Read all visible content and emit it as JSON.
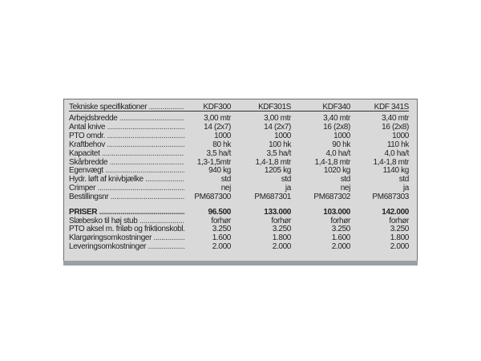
{
  "header": {
    "label": "Tekniske specifikationer",
    "models": [
      "KDF300",
      "KDF301S",
      "KDF340",
      "KDF 341S"
    ]
  },
  "specs": [
    {
      "label": "Arbejdsbredde",
      "values": [
        "3,00 mtr",
        "3,00 mtr",
        "3,40 mtr",
        "3,40 mtr"
      ]
    },
    {
      "label": "Antal knive",
      "values": [
        "14 (2x7)",
        "14 (2x7)",
        "16 (2x8)",
        "16 (2x8)"
      ]
    },
    {
      "label": "PTO omdr.",
      "values": [
        "1000",
        "1000",
        "1000",
        "1000"
      ]
    },
    {
      "label": "Kraftbehov",
      "values": [
        "80 hk",
        "100 hk",
        "90 hk",
        "110  hk"
      ]
    },
    {
      "label": "Kapacitet",
      "values": [
        "3,5 ha/t",
        "3,5 ha/t",
        "4,0 ha/t",
        "4,0 ha/t"
      ]
    },
    {
      "label": "Skårbredde",
      "values": [
        "1,3-1,5mtr",
        "1,4-1,8 mtr",
        "1,4-1,8 mtr",
        "1,4-1,8 mtr"
      ]
    },
    {
      "label": "Egenvægt",
      "values": [
        "940 kg",
        "1205 kg",
        "1020 kg",
        "1140 kg"
      ]
    },
    {
      "label": "Hydr. løft af knivbjælke",
      "values": [
        "std",
        "std",
        "std",
        "std"
      ]
    },
    {
      "label": "Crimper",
      "values": [
        "nej",
        "ja",
        "nej",
        "ja"
      ]
    },
    {
      "label": "Bestillingsnr",
      "values": [
        "PM687300",
        "PM687301",
        "PM687302",
        "PM687303"
      ]
    }
  ],
  "prices": [
    {
      "label": "PRISER",
      "values": [
        "96.500",
        "133.000",
        "103.000",
        "142.000"
      ],
      "bold": true
    },
    {
      "label": "Slæbesko til høj stub",
      "values": [
        "forhør",
        "forhør",
        "forhør",
        "forhør"
      ]
    },
    {
      "label": "PTO aksel m. friløb og friktionskobl.",
      "values": [
        "3.250",
        "3.250",
        "3.250",
        "3.250"
      ]
    },
    {
      "label": "Klargøringsomkostninger",
      "values": [
        "1.600",
        "1.800",
        "1.600",
        "1.800"
      ]
    },
    {
      "label": "Leveringsomkostninger",
      "values": [
        "2.000",
        "2.000",
        "2.000",
        "2.000"
      ]
    }
  ]
}
